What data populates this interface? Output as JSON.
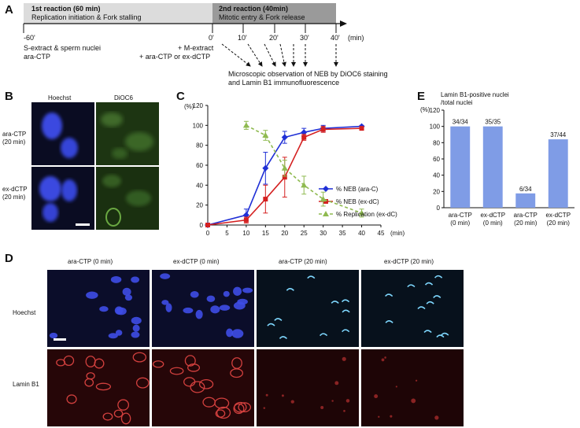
{
  "panels": {
    "A": "A",
    "B": "B",
    "C": "C",
    "D": "D",
    "E": "E"
  },
  "panelA": {
    "r1_title": "1st reaction (60 min)",
    "r1_sub": "Replication initiation & Fork stalling",
    "r2_title": "2nd reaction (40min)",
    "r2_sub": "Mitotic entry & Fork release",
    "ticks": [
      "-60'",
      "0'",
      "10'",
      "20'",
      "30'",
      "40'"
    ],
    "unit": "(min)",
    "left_note_1": "S-extract & sperm nuclei",
    "left_note_2": "ara-CTP",
    "mid_note_1": "+ M-extract",
    "mid_note_2": "+ ara-CTP or ex-dCTP",
    "obs_1": "Microscopic observation of NEB by DiOC6 staining",
    "obs_2": "and Lamin B1 immunofluorescence",
    "colors": {
      "r1": "#dcdcdc",
      "r2": "#9a9a9a"
    }
  },
  "panelB": {
    "col1": "Hoechst",
    "col2": "DiOC6",
    "row1_1": "ara-CTP",
    "row1_2": "(20 min)",
    "row2_1": "ex-dCTP",
    "row2_2": "(20 min)"
  },
  "panelD": {
    "cols": [
      "ara-CTP (0 min)",
      "ex-dCTP (0 min)",
      "ara-CTP (20 min)",
      "ex-dCTP (20 min)"
    ],
    "rows": [
      "Hoechst",
      "Lamin B1"
    ]
  },
  "chart_data": [
    {
      "type": "line",
      "panel": "C",
      "yunit": "(%)",
      "xunit": "(min)",
      "xlim": [
        0,
        45
      ],
      "ylim": [
        0,
        120
      ],
      "xticks": [
        "0",
        "5",
        "10",
        "15",
        "20",
        "25",
        "30",
        "35",
        "40",
        "45"
      ],
      "yticks": [
        "0",
        "20",
        "40",
        "60",
        "80",
        "100",
        "120"
      ],
      "legend_position": "right-middle",
      "series": [
        {
          "name": "% NEB (ara-C)",
          "color": "#1f2fd6",
          "marker": "diamond",
          "dashed": false,
          "x": [
            0,
            10,
            15,
            20,
            25,
            30,
            40
          ],
          "y": [
            0,
            10,
            57,
            88,
            93,
            97,
            99
          ],
          "err": [
            0,
            6,
            16,
            6,
            4,
            3,
            1
          ]
        },
        {
          "name": "% NEB (ex-dC)",
          "color": "#d42020",
          "marker": "square",
          "dashed": false,
          "x": [
            0,
            10,
            15,
            20,
            25,
            30,
            40
          ],
          "y": [
            0,
            5,
            26,
            48,
            88,
            96,
            97
          ],
          "err": [
            0,
            3,
            14,
            20,
            3,
            3,
            1
          ]
        },
        {
          "name": "% Replication (ex-dC)",
          "color": "#8fba50",
          "marker": "triangle",
          "dashed": true,
          "x": [
            10,
            15,
            20,
            25,
            30,
            40
          ],
          "y": [
            100,
            90,
            57,
            40,
            26,
            12
          ],
          "err": [
            4,
            5,
            8,
            9,
            7,
            4
          ]
        }
      ]
    },
    {
      "type": "bar",
      "panel": "E",
      "title_1": "Lamin B1-positive nuclei",
      "title_2": "/total nuclei",
      "yunit": "(%)",
      "ylim": [
        0,
        120
      ],
      "yticks": [
        "0",
        "20",
        "40",
        "60",
        "80",
        "100",
        "120"
      ],
      "categories": [
        [
          "ara-CTP",
          "(0 min)"
        ],
        [
          "ex-dCTP",
          "(0 min)"
        ],
        [
          "ara-CTP",
          "(20 min)"
        ],
        [
          "ex-dCTP",
          "(20 min)"
        ]
      ],
      "values": [
        100,
        100,
        17.6,
        84.1
      ],
      "labels": [
        "34/34",
        "35/35",
        "6/34",
        "37/44"
      ],
      "color": "#7f9ce6"
    }
  ]
}
